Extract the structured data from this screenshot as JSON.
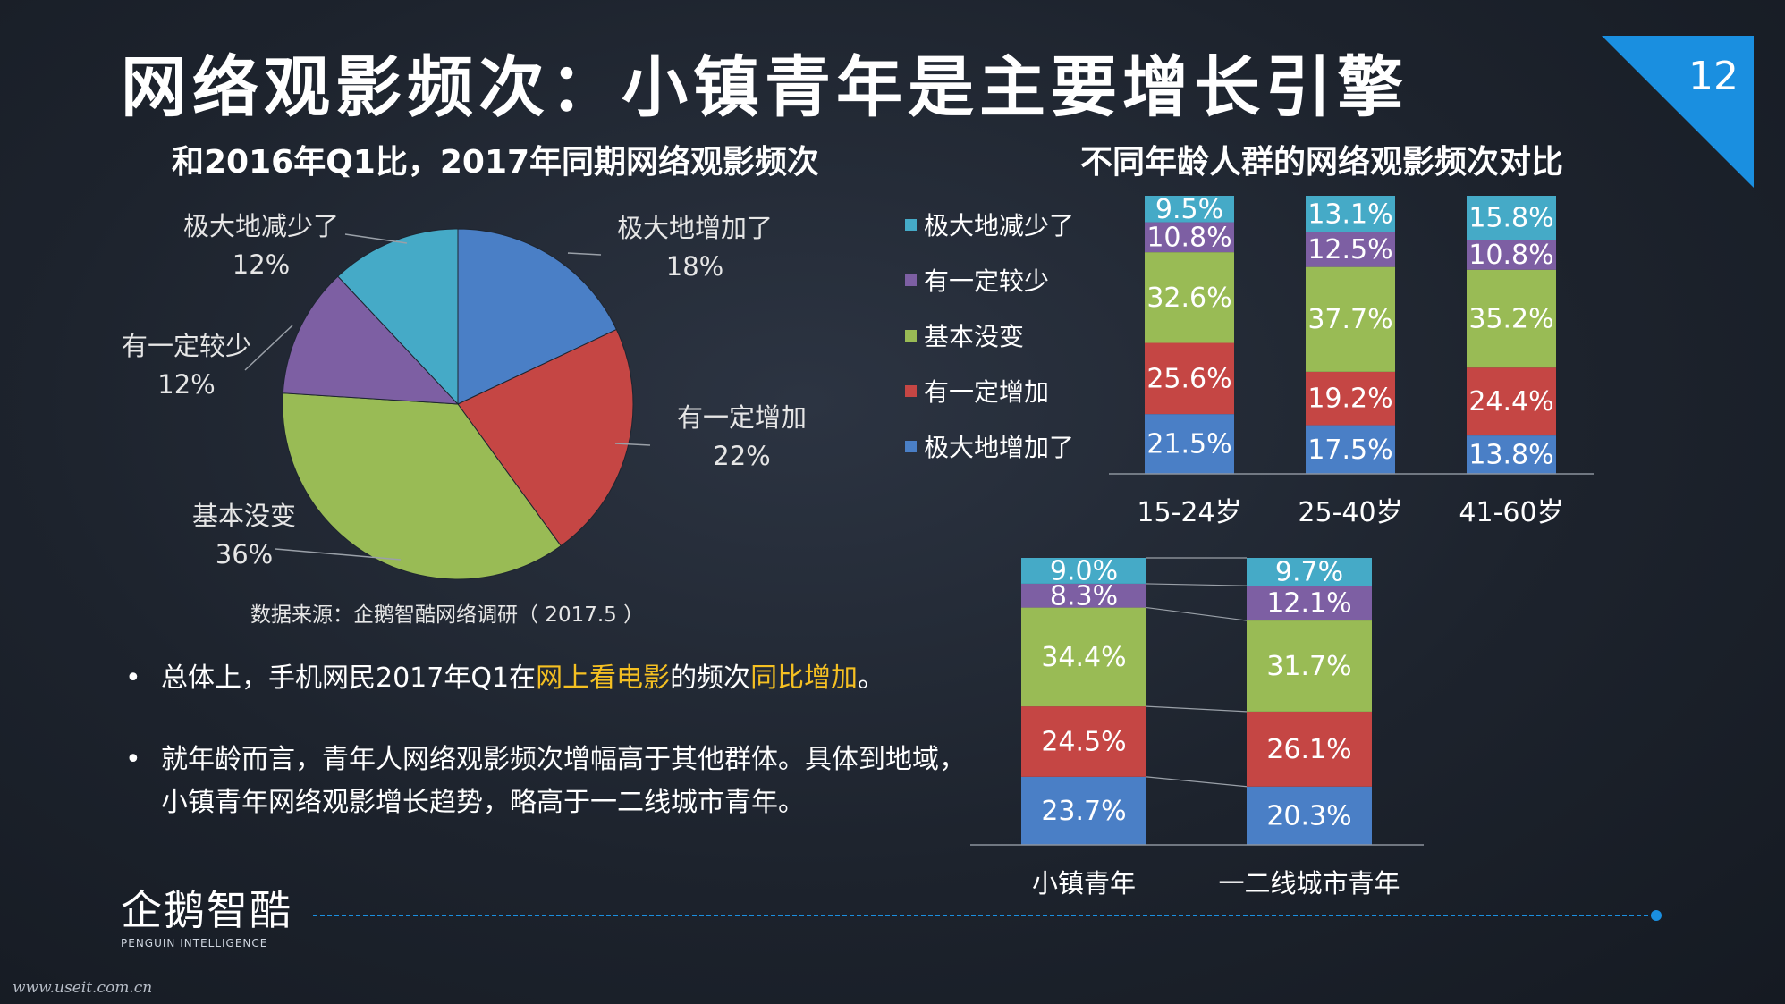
{
  "title": "网络观影频次：小镇青年是主要增长引擎",
  "page_number": "12",
  "source": "数据来源：企鹅智酷网络调研（ 2017.5 ）",
  "bullets": [
    {
      "parts": [
        {
          "text": "总体上，手机网民2017年Q1在",
          "highlight": false
        },
        {
          "text": "网上看电影",
          "highlight": true
        },
        {
          "text": "的频次",
          "highlight": false
        },
        {
          "text": "同比增加",
          "highlight": true
        },
        {
          "text": "。",
          "highlight": false
        }
      ]
    },
    {
      "parts": [
        {
          "text": "就年龄而言，青年人网络观影频次增幅高于其他群体。具体到地域，小镇青年网络观影增长趋势，略高于一二线城市青年。",
          "highlight": false
        }
      ]
    }
  ],
  "logo": {
    "name": "企鹅智酷",
    "sub": "PENGUIN INTELLIGENCE"
  },
  "watermark": "www.useit.com.cn",
  "colors": {
    "blue": "#4a7fc6",
    "red": "#c54644",
    "green": "#99bb55",
    "purple": "#7d5fa3",
    "cyan": "#45aac7",
    "highlight": "#f5c022",
    "accent": "#1a8fe0"
  },
  "chart_data": [
    {
      "type": "pie",
      "title": "和2016年Q1比，2017年同期网络观影频次",
      "slices": [
        {
          "label": "极大地增加了",
          "value": 18,
          "pct": "18%",
          "color": "#4a7fc6"
        },
        {
          "label": "有一定增加",
          "value": 22,
          "pct": "22%",
          "color": "#c54644"
        },
        {
          "label": "基本没变",
          "value": 36,
          "pct": "36%",
          "color": "#99bb55"
        },
        {
          "label": "有一定较少",
          "value": 12,
          "pct": "12%",
          "color": "#7d5fa3"
        },
        {
          "label": "极大地减少了",
          "value": 12,
          "pct": "12%",
          "color": "#45aac7"
        }
      ]
    },
    {
      "type": "bar",
      "stacked": true,
      "title": "不同年龄人群的网络观影频次对比",
      "categories": [
        "15-24岁",
        "25-40岁",
        "41-60岁"
      ],
      "series": [
        {
          "name": "极大地增加了",
          "color": "#4a7fc6",
          "values": [
            21.5,
            17.5,
            13.8
          ]
        },
        {
          "name": "有一定增加",
          "color": "#c54644",
          "values": [
            25.6,
            19.2,
            24.4
          ]
        },
        {
          "name": "基本没变",
          "color": "#99bb55",
          "values": [
            32.6,
            37.7,
            35.2
          ]
        },
        {
          "name": "有一定较少",
          "color": "#7d5fa3",
          "values": [
            10.8,
            12.5,
            10.8
          ]
        },
        {
          "name": "极大地减少了",
          "color": "#45aac7",
          "values": [
            9.5,
            13.1,
            15.8
          ]
        }
      ],
      "legend": "left"
    },
    {
      "type": "bar",
      "stacked": true,
      "categories": [
        "小镇青年",
        "一二线城市青年"
      ],
      "series": [
        {
          "name": "极大地增加了",
          "color": "#4a7fc6",
          "values": [
            23.7,
            20.3
          ]
        },
        {
          "name": "有一定增加",
          "color": "#c54644",
          "values": [
            24.5,
            26.1
          ]
        },
        {
          "name": "基本没变",
          "color": "#99bb55",
          "values": [
            34.4,
            31.7
          ]
        },
        {
          "name": "有一定较少",
          "color": "#7d5fa3",
          "values": [
            8.3,
            12.1
          ]
        },
        {
          "name": "极大地减少了",
          "color": "#45aac7",
          "values": [
            9.0,
            9.7
          ]
        }
      ],
      "connector_lines": true
    }
  ]
}
